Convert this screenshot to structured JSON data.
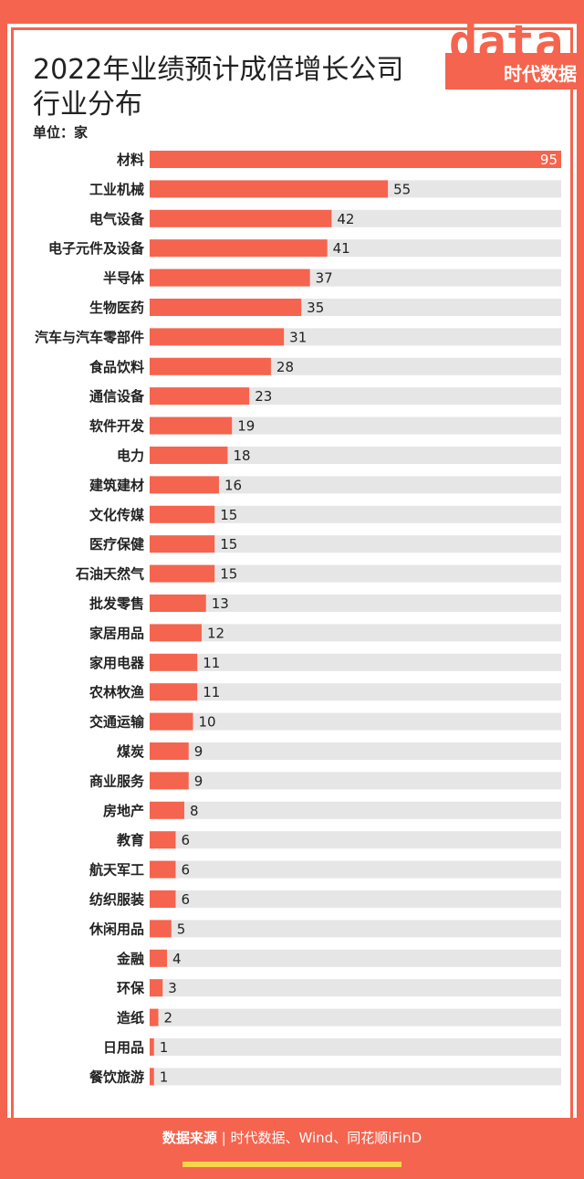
{
  "header": {
    "title_line1": "2022年业绩预计成倍增长公司",
    "title_line2": "行业分布",
    "unit": "单位：家",
    "logo_word": "data",
    "logo_cn": "时代数据"
  },
  "footer": {
    "source_label": "数据来源",
    "separator": "|",
    "source_text": "时代数据、Wind、同花顺iFinD"
  },
  "colors": {
    "bar": "#f5644e",
    "track": "#e6e6e6",
    "accent_yellow": "#f6d54a"
  },
  "chart_data": {
    "type": "bar",
    "orientation": "horizontal",
    "title": "2022年业绩预计成倍增长公司行业分布",
    "unit": "家",
    "categories": [
      "材料",
      "工业机械",
      "电气设备",
      "电子元件及设备",
      "半导体",
      "生物医药",
      "汽车与汽车零部件",
      "食品饮料",
      "通信设备",
      "软件开发",
      "电力",
      "建筑建材",
      "文化传媒",
      "医疗保健",
      "石油天然气",
      "批发零售",
      "家居用品",
      "家用电器",
      "农林牧渔",
      "交通运输",
      "煤炭",
      "商业服务",
      "房地产",
      "教育",
      "航天军工",
      "纺织服装",
      "休闲用品",
      "金融",
      "环保",
      "造纸",
      "日用品",
      "餐饮旅游"
    ],
    "values": [
      95,
      55,
      42,
      41,
      37,
      35,
      31,
      28,
      23,
      19,
      18,
      16,
      15,
      15,
      15,
      13,
      12,
      11,
      11,
      10,
      9,
      9,
      8,
      6,
      6,
      6,
      5,
      4,
      3,
      2,
      1,
      1
    ],
    "xlim": [
      0,
      95
    ],
    "grid": false,
    "legend": "none"
  }
}
